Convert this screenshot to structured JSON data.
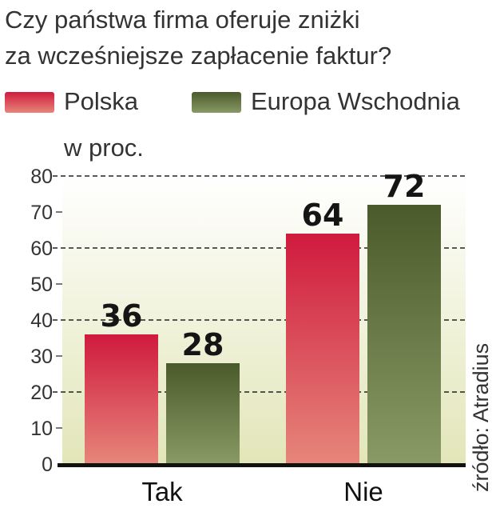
{
  "colors": {
    "polska_top": "#d01a3e",
    "polska_bottom": "#e6867a",
    "europa_top": "#4a5a2a",
    "europa_bottom": "#8a9a66",
    "plot_bg_top": "#ffffff",
    "plot_bg_bottom": "#e2e6b8",
    "gridline": "#222222",
    "baseline": "#111111"
  },
  "chart_data": {
    "type": "bar",
    "title_lines": [
      "Czy państwa firma oferuje zniżki",
      "za wcześniejsze zapłacenie faktur?"
    ],
    "unit_label": "w proc.",
    "source": "źródło: Atradius",
    "categories": [
      "Tak",
      "Nie"
    ],
    "series": [
      {
        "name": "Polska",
        "values": [
          36,
          64
        ]
      },
      {
        "name": "Europa Wschodnia",
        "values": [
          28,
          72
        ]
      }
    ],
    "value_labels": [
      [
        "36",
        "64"
      ],
      [
        "28",
        "72"
      ]
    ],
    "ylim": [
      0,
      80
    ],
    "yticks": [
      "0",
      "10",
      "20",
      "30",
      "40",
      "50",
      "60",
      "70",
      "80"
    ],
    "grid": "dashed at 20, 40, 60, 80",
    "legend_position": "top"
  }
}
